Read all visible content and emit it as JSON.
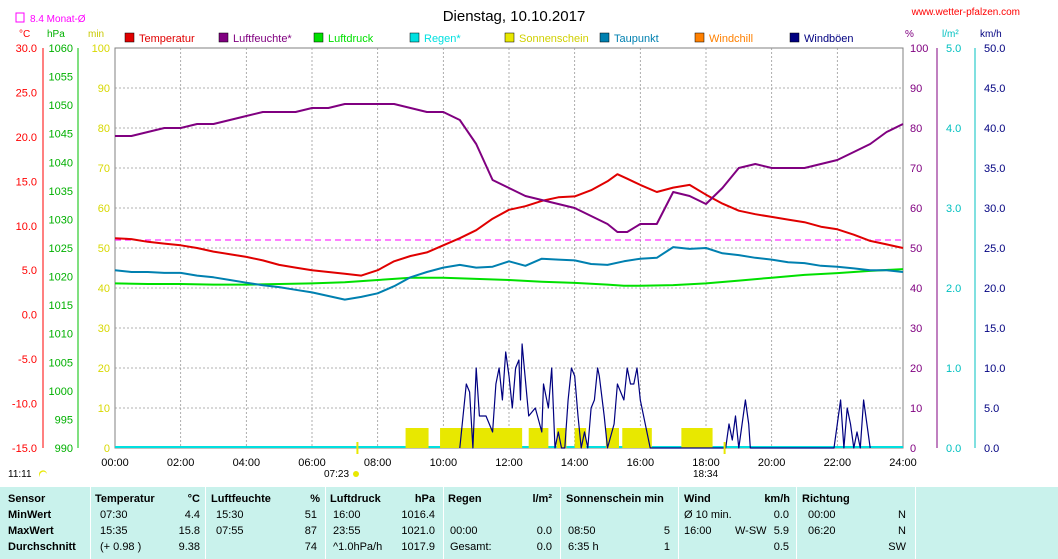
{
  "header": {
    "title": "Dienstag, 10.10.2017",
    "site": "www.wetter-pfalzen.com",
    "monat_avg_label": "8.4 Monat-Ø",
    "unit_temp": "°C",
    "unit_hpa": "hPa",
    "unit_min": "min",
    "unit_pct": "%",
    "unit_rain": "l/m²",
    "unit_kmh": "km/h"
  },
  "legend": [
    {
      "label": "Temperatur",
      "color": "#e00000"
    },
    {
      "label": "Luftfeuchte*",
      "color": "#800080"
    },
    {
      "label": "Luftdruck",
      "color": "#00e000"
    },
    {
      "label": "Regen*",
      "color": "#00e0e0"
    },
    {
      "label": "Sonnenschein",
      "color": "#e8e800"
    },
    {
      "label": "Taupunkt",
      "color": "#0080b0"
    },
    {
      "label": "Windchill",
      "color": "#ff8000"
    },
    {
      "label": "Windböen",
      "color": "#000080"
    }
  ],
  "markers": {
    "sunrise": "07:23",
    "sunset": "18:34",
    "moon_time": "11:11"
  },
  "chart_data": {
    "type": "line",
    "title": "Dienstag, 10.10.2017",
    "x_ticks": [
      "00:00",
      "02:00",
      "04:00",
      "06:00",
      "08:00",
      "10:00",
      "12:00",
      "14:00",
      "16:00",
      "18:00",
      "20:00",
      "22:00",
      "24:00"
    ],
    "xlim_hours": [
      0,
      24
    ],
    "grid": true,
    "axes": {
      "temp_c": {
        "range": [
          -15,
          30
        ],
        "ticks": [
          "30.0",
          "25.0",
          "20.0",
          "15.0",
          "10.0",
          "5.0",
          "0.0",
          "-5.0",
          "-10.0",
          "-15.0"
        ],
        "color": "#ff0000"
      },
      "pressure_hpa": {
        "range": [
          990,
          1060
        ],
        "ticks": [
          "1060",
          "1055",
          "1050",
          "1045",
          "1040",
          "1035",
          "1030",
          "1025",
          "1020",
          "1015",
          "1010",
          "1005",
          "1000",
          "995",
          "990"
        ],
        "color": "#00cc00"
      },
      "sun_min": {
        "range": [
          0,
          100
        ],
        "ticks": [
          "100",
          "90",
          "80",
          "70",
          "60",
          "50",
          "40",
          "30",
          "20",
          "10",
          "0"
        ],
        "color": "#e8e800"
      },
      "humidity_pct": {
        "range": [
          0,
          100
        ],
        "ticks": [
          "100",
          "90",
          "80",
          "70",
          "60",
          "50",
          "40",
          "30",
          "20",
          "10",
          "0"
        ],
        "color": "#800080"
      },
      "rain_lm2": {
        "range": [
          0,
          5
        ],
        "ticks": [
          "5.0",
          "4.0",
          "3.0",
          "2.0",
          "1.0",
          "0.0"
        ],
        "color": "#00c0c0"
      },
      "wind_kmh": {
        "range": [
          0,
          50
        ],
        "ticks": [
          "50.0",
          "45.0",
          "40.0",
          "35.0",
          "30.0",
          "25.0",
          "20.0",
          "15.0",
          "10.0",
          "5.0",
          "0.0"
        ],
        "color": "#000080"
      }
    },
    "monthly_avg_temp": 8.4,
    "series": [
      {
        "name": "Temperatur",
        "axis": "temp_c",
        "color": "#e00000",
        "x": [
          0,
          0.5,
          1,
          1.5,
          2,
          2.5,
          3,
          3.5,
          4,
          4.5,
          5,
          5.5,
          6,
          6.5,
          7,
          7.5,
          8,
          8.5,
          9,
          9.5,
          10,
          10.5,
          11,
          11.5,
          12,
          12.5,
          13,
          13.5,
          14,
          14.5,
          15,
          15.3,
          15.6,
          16,
          16.5,
          17,
          17.5,
          18,
          18.5,
          19,
          19.5,
          20,
          20.5,
          21,
          21.5,
          22,
          22.5,
          23,
          23.5,
          24
        ],
        "y": [
          8.6,
          8.5,
          8.2,
          8.0,
          7.8,
          7.5,
          7.1,
          6.8,
          6.5,
          6.1,
          5.6,
          5.3,
          5.0,
          4.8,
          4.6,
          4.4,
          5.0,
          6.0,
          6.6,
          7.0,
          7.8,
          8.6,
          9.5,
          10.8,
          11.8,
          12.2,
          12.8,
          13.2,
          13.3,
          14.0,
          15.0,
          15.8,
          15.3,
          14.6,
          13.8,
          14.3,
          14.6,
          13.5,
          12.5,
          11.7,
          11.3,
          11.0,
          10.7,
          10.4,
          9.9,
          9.6,
          9.0,
          8.3,
          7.9,
          7.5
        ]
      },
      {
        "name": "Luftfeuchte*",
        "axis": "humidity_pct",
        "color": "#800080",
        "x": [
          0,
          0.5,
          1,
          1.5,
          2,
          2.5,
          3,
          3.5,
          4,
          4.5,
          5,
          5.5,
          6,
          6.5,
          7,
          7.5,
          8,
          8.5,
          9,
          9.5,
          10,
          10.5,
          11,
          11.5,
          12,
          12.5,
          13,
          13.5,
          14,
          14.5,
          15,
          15.3,
          15.6,
          16,
          16.5,
          17,
          17.5,
          18,
          18.5,
          19,
          19.5,
          20,
          20.5,
          21,
          21.5,
          22,
          22.5,
          23,
          23.5,
          24
        ],
        "y": [
          78,
          78,
          79,
          80,
          80,
          81,
          81,
          82,
          83,
          84,
          84,
          84,
          85,
          85,
          86,
          86,
          86,
          86,
          85,
          84,
          84,
          82,
          76,
          67,
          65,
          63,
          62,
          61,
          60,
          58,
          56,
          54,
          54,
          56,
          56,
          64,
          63,
          61,
          65,
          70,
          71,
          70,
          70,
          70,
          71,
          72,
          74,
          76,
          79,
          81
        ]
      },
      {
        "name": "Luftdruck",
        "axis": "pressure_hpa",
        "color": "#00e000",
        "x": [
          0,
          1,
          2,
          3,
          4,
          5,
          6,
          7,
          7.5,
          8,
          9,
          10,
          11,
          12,
          13,
          14,
          15,
          15.5,
          16,
          17,
          18,
          19,
          20,
          21,
          22,
          23,
          24
        ],
        "y": [
          1018.8,
          1018.7,
          1018.7,
          1018.6,
          1018.6,
          1018.7,
          1018.8,
          1019.0,
          1019.2,
          1019.4,
          1019.8,
          1019.8,
          1019.6,
          1019.4,
          1019.1,
          1018.9,
          1018.6,
          1018.4,
          1018.4,
          1018.5,
          1018.8,
          1019.3,
          1019.8,
          1020.3,
          1020.6,
          1021.0,
          1021.3
        ]
      },
      {
        "name": "Taupunkt",
        "axis": "temp_c",
        "color": "#0080b0",
        "x": [
          0,
          0.5,
          1,
          1.5,
          2,
          2.5,
          3,
          3.5,
          4,
          4.5,
          5,
          5.5,
          6,
          6.5,
          7,
          7.5,
          8,
          8.5,
          9,
          9.5,
          10,
          10.5,
          11,
          11.5,
          12,
          12.5,
          13,
          13.5,
          14,
          14.5,
          15,
          15.5,
          16,
          16.5,
          17,
          17.5,
          18,
          18.5,
          19,
          19.5,
          20,
          20.5,
          21,
          21.5,
          22,
          22.5,
          23,
          23.5,
          24
        ],
        "y": [
          5.0,
          4.8,
          4.8,
          4.7,
          4.7,
          4.4,
          4.2,
          3.9,
          3.6,
          3.3,
          3.1,
          2.8,
          2.5,
          2.1,
          1.7,
          2.0,
          2.4,
          3.2,
          4.2,
          4.8,
          5.3,
          5.6,
          5.3,
          5.4,
          6.0,
          5.5,
          6.3,
          6.2,
          6.1,
          5.7,
          5.6,
          6.0,
          6.3,
          6.4,
          7.6,
          7.4,
          7.5,
          6.9,
          6.7,
          6.4,
          6.2,
          5.9,
          5.8,
          5.5,
          5.4,
          5.2,
          5.0,
          5.0,
          4.8
        ]
      },
      {
        "name": "Sonnenschein",
        "axis": "sun_min",
        "color": "#e8e800",
        "bars": [
          [
            8.85,
            9.55
          ],
          [
            9.9,
            12.4
          ],
          [
            12.6,
            13.2
          ],
          [
            13.45,
            13.75
          ],
          [
            14.0,
            14.35
          ],
          [
            14.95,
            15.35
          ],
          [
            15.45,
            16.35
          ],
          [
            17.25,
            18.2
          ]
        ],
        "value": 5
      },
      {
        "name": "Windböen",
        "axis": "wind_kmh",
        "color": "#000080",
        "x": [
          10.5,
          10.7,
          10.8,
          10.9,
          11.0,
          11.1,
          11.3,
          11.5,
          11.6,
          11.7,
          11.8,
          11.9,
          12.0,
          12.1,
          12.2,
          12.3,
          12.35,
          12.4,
          12.6,
          12.8,
          13.0,
          13.05,
          13.2,
          13.3,
          13.4,
          13.5,
          13.6,
          13.7,
          13.8,
          13.9,
          14.0,
          14.1,
          14.2,
          14.3,
          14.4,
          14.5,
          14.6,
          14.7,
          14.75,
          14.9,
          15.0,
          15.2,
          15.3,
          15.5,
          15.6,
          15.7,
          15.8,
          15.9,
          16.0,
          16.3,
          16.35,
          18.6,
          18.7,
          18.8,
          18.9,
          19.0,
          19.1,
          19.2,
          19.3,
          19.35,
          21.9,
          22.0,
          22.1,
          22.2,
          22.3,
          22.4,
          22.5,
          22.6,
          22.7,
          22.8,
          22.9,
          23.0
        ],
        "y": [
          0,
          8,
          7,
          0,
          10,
          4,
          4,
          2,
          8,
          10,
          6,
          12,
          9,
          5,
          10,
          11,
          6,
          13,
          4,
          5,
          2,
          8,
          5,
          10,
          0,
          2,
          0,
          0,
          6,
          10,
          9,
          4,
          0,
          2,
          0,
          5,
          6,
          10,
          9,
          4,
          0,
          3,
          8,
          6,
          10,
          8,
          8,
          10,
          6,
          0,
          0,
          0,
          3,
          1,
          4,
          0,
          3,
          6,
          3,
          0,
          0,
          3,
          6,
          0,
          5,
          3,
          0,
          2,
          0,
          6,
          3,
          0
        ]
      }
    ]
  },
  "table": {
    "headers": [
      {
        "label": "Sensor"
      },
      {
        "label": "Temperatur",
        "unit": "°C"
      },
      {
        "label": "Luftfeuchte",
        "unit": "%"
      },
      {
        "label": "Luftdruck",
        "unit": "hPa"
      },
      {
        "label": "Regen",
        "unit": "l/m²"
      },
      {
        "label": "Sonnenschein min"
      },
      {
        "label": "Wind",
        "unit": "km/h"
      },
      {
        "label": "Richtung"
      }
    ],
    "rows": [
      {
        "label": "MinWert",
        "temp_time": "07:30",
        "temp_val": "4.4",
        "hum_time": "15:30",
        "hum_val": "51",
        "press_time": "16:00",
        "press_val": "1016.4",
        "rain_time": "",
        "rain_val": "",
        "sun_time": "",
        "sun_val": "",
        "wind_time": "Ø 10 min.",
        "wind_dir": "",
        "wind_val": "0.0",
        "dir_time": "00:00",
        "dir_val": "N"
      },
      {
        "label": "MaxWert",
        "temp_time": "15:35",
        "temp_val": "15.8",
        "hum_time": "07:55",
        "hum_val": "87",
        "press_time": "23:55",
        "press_val": "1021.0",
        "rain_time": "00:00",
        "rain_val": "0.0",
        "sun_time": "08:50",
        "sun_val": "5",
        "wind_time": "16:00",
        "wind_dir": "W-SW",
        "wind_val": "5.9",
        "dir_time": "06:20",
        "dir_val": "N"
      },
      {
        "label": "Durchschnitt",
        "temp_time": "(+ 0.98 )",
        "temp_val": "9.38",
        "hum_time": "",
        "hum_val": "74",
        "press_time": "^1.0hPa/h",
        "press_val": "1017.9",
        "rain_time": "Gesamt:",
        "rain_val": "0.0",
        "sun_time": "6:35 h",
        "sun_val": "1",
        "wind_time": "",
        "wind_dir": "",
        "wind_val": "0.5",
        "dir_time": "",
        "dir_val": "SW"
      }
    ]
  }
}
